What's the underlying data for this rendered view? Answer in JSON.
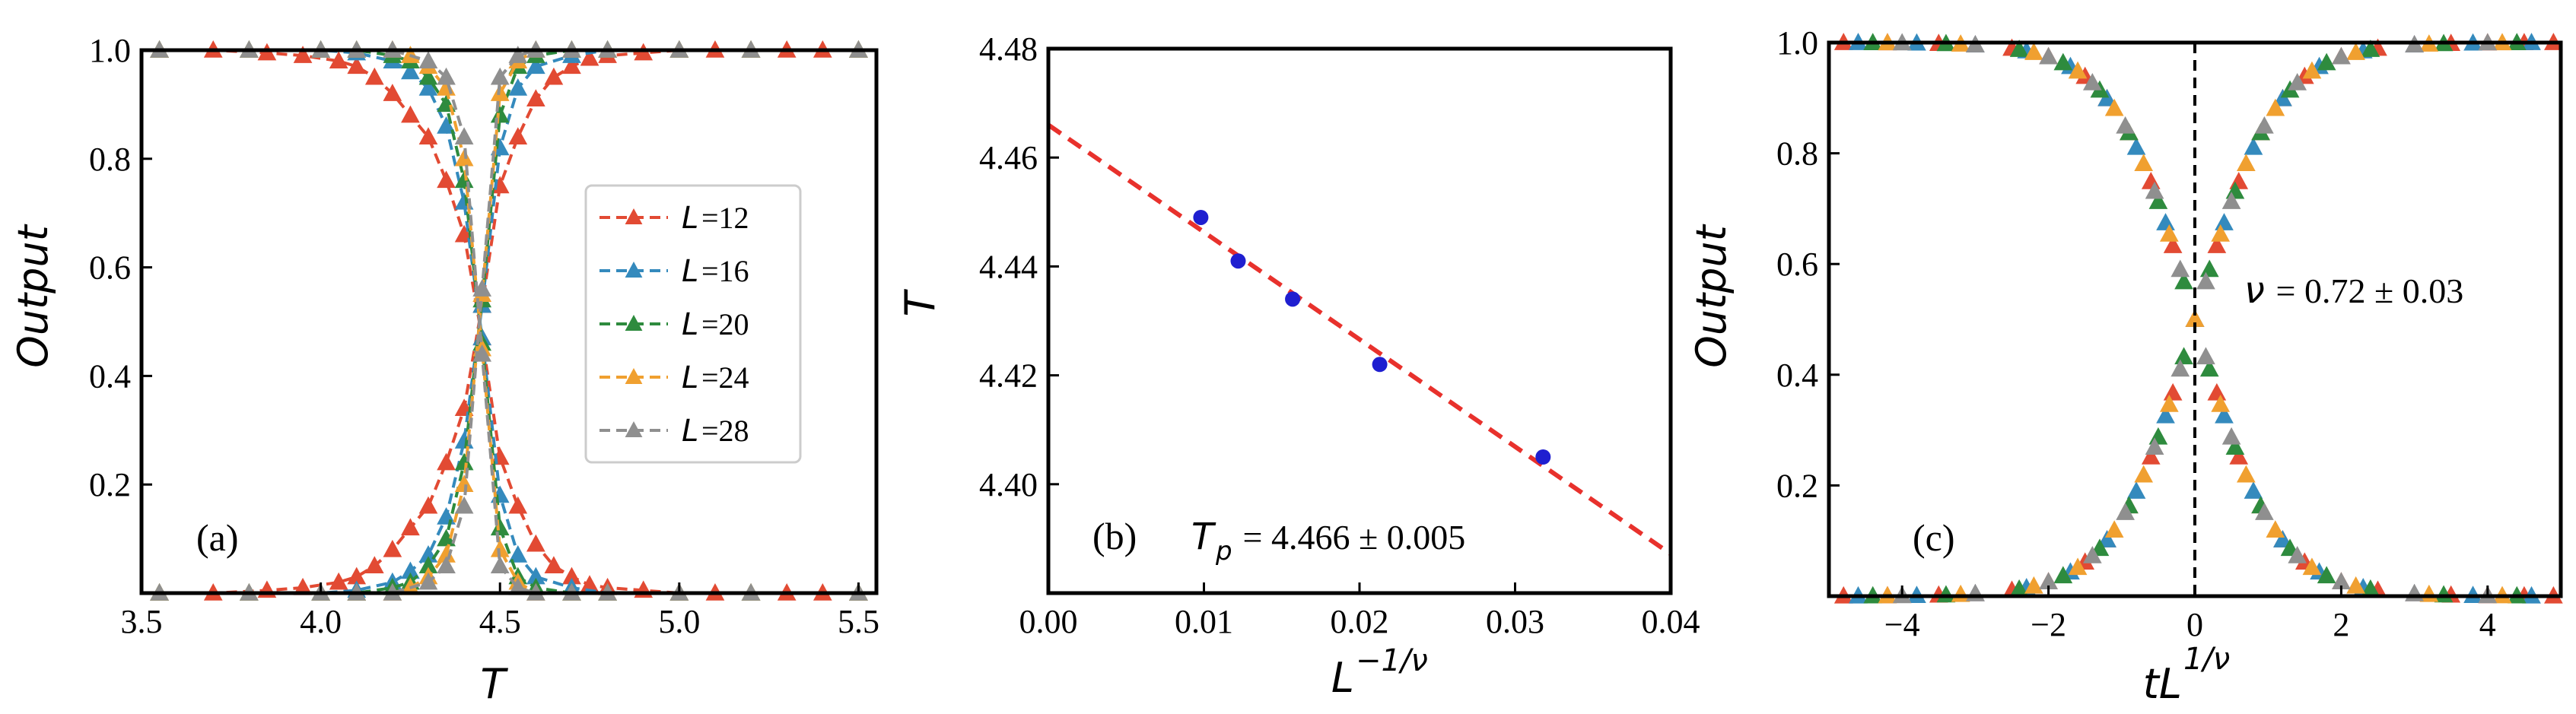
{
  "chart_data": [
    {
      "panel": "(a)",
      "type": "line",
      "xlabel": "T",
      "ylabel": "Output",
      "xlim": [
        3.5,
        5.55
      ],
      "ylim": [
        0.0,
        1.0
      ],
      "xticks": [
        "3.5",
        "4.0",
        "4.5",
        "5.0",
        "5.5"
      ],
      "yticks": [
        "0.2",
        "0.4",
        "0.6",
        "0.8",
        "1.0"
      ],
      "legend_position": "center-right",
      "series": [
        {
          "name": "=12",
          "L": "L",
          "color": "#e24a33",
          "x": [
            3.55,
            3.7,
            3.85,
            3.95,
            4.05,
            4.1,
            4.15,
            4.2,
            4.25,
            4.3,
            4.35,
            4.4,
            4.45,
            4.5,
            4.55,
            4.6,
            4.65,
            4.7,
            4.75,
            4.8,
            4.9,
            5.0,
            5.1,
            5.2,
            5.3,
            5.4,
            5.5
          ],
          "up": [
            1.0,
            1.0,
            0.995,
            0.99,
            0.98,
            0.97,
            0.95,
            0.92,
            0.88,
            0.84,
            0.76,
            0.66,
            0.47,
            0.25,
            0.16,
            0.09,
            0.05,
            0.03,
            0.015,
            0.01,
            0.005,
            0.0,
            0.0,
            0.0,
            0.0,
            0.0,
            0.0
          ],
          "down": [
            0.0,
            0.0,
            0.005,
            0.01,
            0.02,
            0.03,
            0.05,
            0.08,
            0.12,
            0.16,
            0.24,
            0.34,
            0.53,
            0.75,
            0.84,
            0.91,
            0.95,
            0.97,
            0.985,
            0.99,
            0.995,
            1.0,
            1.0,
            1.0,
            1.0,
            1.0,
            1.0
          ]
        },
        {
          "name": "=16",
          "L": "L",
          "color": "#348abd",
          "x": [
            3.55,
            3.8,
            4.0,
            4.1,
            4.2,
            4.25,
            4.3,
            4.35,
            4.4,
            4.45,
            4.5,
            4.55,
            4.6,
            4.7,
            4.8,
            5.0,
            5.2,
            5.5
          ],
          "up": [
            1.0,
            1.0,
            1.0,
            0.995,
            0.98,
            0.96,
            0.93,
            0.86,
            0.72,
            0.47,
            0.18,
            0.07,
            0.03,
            0.01,
            0.0,
            0.0,
            0.0,
            0.0
          ],
          "down": [
            0.0,
            0.0,
            0.0,
            0.005,
            0.02,
            0.04,
            0.07,
            0.14,
            0.28,
            0.53,
            0.82,
            0.93,
            0.97,
            0.99,
            1.0,
            1.0,
            1.0,
            1.0
          ]
        },
        {
          "name": "=20",
          "L": "L",
          "color": "#2e8b3e",
          "x": [
            3.55,
            3.8,
            4.0,
            4.1,
            4.2,
            4.25,
            4.3,
            4.35,
            4.4,
            4.45,
            4.5,
            4.55,
            4.6,
            4.7,
            4.8,
            5.0,
            5.2,
            5.5
          ],
          "up": [
            1.0,
            1.0,
            1.0,
            1.0,
            0.99,
            0.98,
            0.95,
            0.9,
            0.76,
            0.46,
            0.12,
            0.03,
            0.01,
            0.0,
            0.0,
            0.0,
            0.0,
            0.0
          ],
          "down": [
            0.0,
            0.0,
            0.0,
            0.0,
            0.01,
            0.02,
            0.05,
            0.1,
            0.24,
            0.54,
            0.88,
            0.97,
            0.99,
            1.0,
            1.0,
            1.0,
            1.0,
            1.0
          ]
        },
        {
          "name": "=24",
          "L": "L",
          "color": "#f0a030",
          "x": [
            3.55,
            3.8,
            4.0,
            4.1,
            4.2,
            4.25,
            4.3,
            4.35,
            4.4,
            4.45,
            4.5,
            4.55,
            4.6,
            4.7,
            4.8,
            5.0,
            5.2,
            5.5
          ],
          "up": [
            1.0,
            1.0,
            1.0,
            1.0,
            1.0,
            0.99,
            0.97,
            0.93,
            0.8,
            0.45,
            0.08,
            0.02,
            0.0,
            0.0,
            0.0,
            0.0,
            0.0,
            0.0
          ],
          "down": [
            0.0,
            0.0,
            0.0,
            0.0,
            0.0,
            0.01,
            0.03,
            0.07,
            0.2,
            0.55,
            0.92,
            0.98,
            1.0,
            1.0,
            1.0,
            1.0,
            1.0,
            1.0
          ]
        },
        {
          "name": "=28",
          "L": "L",
          "color": "#8f8f8f",
          "x": [
            3.55,
            3.8,
            4.0,
            4.1,
            4.2,
            4.3,
            4.35,
            4.4,
            4.45,
            4.5,
            4.55,
            4.6,
            4.7,
            4.8,
            5.0,
            5.2,
            5.5
          ],
          "up": [
            1.0,
            1.0,
            1.0,
            1.0,
            1.0,
            0.98,
            0.95,
            0.84,
            0.44,
            0.05,
            0.01,
            0.0,
            0.0,
            0.0,
            0.0,
            0.0,
            0.0
          ],
          "down": [
            0.0,
            0.0,
            0.0,
            0.0,
            0.0,
            0.02,
            0.05,
            0.16,
            0.56,
            0.95,
            0.99,
            1.0,
            1.0,
            1.0,
            1.0,
            1.0,
            1.0
          ]
        }
      ]
    },
    {
      "panel": "(b)",
      "type": "scatter",
      "xlabel": "L",
      "xlabel_sup": "−1/ν",
      "ylabel": "T",
      "xlim": [
        0.0,
        0.04
      ],
      "ylim": [
        4.38,
        4.48
      ],
      "xticks": [
        "0.00",
        "0.01",
        "0.02",
        "0.03",
        "0.04"
      ],
      "yticks": [
        "4.40",
        "4.42",
        "4.44",
        "4.46",
        "4.48"
      ],
      "points_color": "#1f1fd0",
      "fit_color": "#e8312c",
      "points": [
        [
          0.0098,
          4.449
        ],
        [
          0.0122,
          4.441
        ],
        [
          0.0157,
          4.434
        ],
        [
          0.0213,
          4.422
        ],
        [
          0.0318,
          4.405
        ]
      ],
      "fit": {
        "intercept": 4.466,
        "slope": -1.97
      },
      "annotation_symbol": "T",
      "annotation_sub": "p",
      "annotation_value": " = 4.466 ± 0.005"
    },
    {
      "panel": "(c)",
      "type": "scatter",
      "xlabel": "tL",
      "xlabel_sup": "1/ν",
      "ylabel": "Output",
      "xlim": [
        -5.0,
        5.0
      ],
      "ylim": [
        0.0,
        1.0
      ],
      "xticks": [
        "−4",
        "−2",
        "0",
        "2",
        "4"
      ],
      "yticks": [
        "0.2",
        "0.4",
        "0.6",
        "0.8",
        "1.0"
      ],
      "vline_x": 0,
      "annotation_symbol": "ν",
      "annotation_value": " = 0.72 ± 0.03",
      "series": [
        {
          "name": "L=12",
          "color": "#e24a33",
          "x": [
            -4.8,
            -4.2,
            -3.5,
            -3.0,
            -2.5,
            -2.0,
            -1.5,
            -1.2,
            -0.9,
            -0.6,
            -0.3,
            0.0,
            0.3,
            0.6,
            0.9,
            1.2,
            1.5,
            2.0,
            2.5,
            3.0,
            3.5,
            4.0,
            4.5,
            4.9
          ]
        },
        {
          "name": "L=16",
          "color": "#348abd",
          "x": [
            -4.6,
            -3.8,
            -3.0,
            -2.3,
            -1.7,
            -1.2,
            -0.8,
            -0.4,
            0.0,
            0.4,
            0.8,
            1.2,
            1.7,
            2.3,
            3.0,
            3.8,
            4.6
          ]
        },
        {
          "name": "L=20",
          "color": "#2e8b3e",
          "x": [
            -4.4,
            -3.4,
            -2.4,
            -1.8,
            -1.3,
            -0.9,
            -0.5,
            -0.15,
            0.2,
            0.55,
            0.9,
            1.3,
            1.8,
            2.4,
            3.4,
            4.4
          ]
        },
        {
          "name": "L=24",
          "color": "#f0a030",
          "x": [
            -4.2,
            -3.2,
            -2.2,
            -1.6,
            -1.1,
            -0.7,
            -0.35,
            0.0,
            0.35,
            0.7,
            1.1,
            1.6,
            2.2,
            3.2,
            4.2
          ]
        },
        {
          "name": "L=28",
          "color": "#8f8f8f",
          "x": [
            -4.0,
            -3.0,
            -2.0,
            -1.4,
            -0.95,
            -0.55,
            -0.2,
            0.15,
            0.5,
            0.95,
            1.4,
            2.0,
            3.0,
            4.0
          ]
        }
      ],
      "curve_center": 0.0,
      "curve_width": 0.55
    }
  ]
}
